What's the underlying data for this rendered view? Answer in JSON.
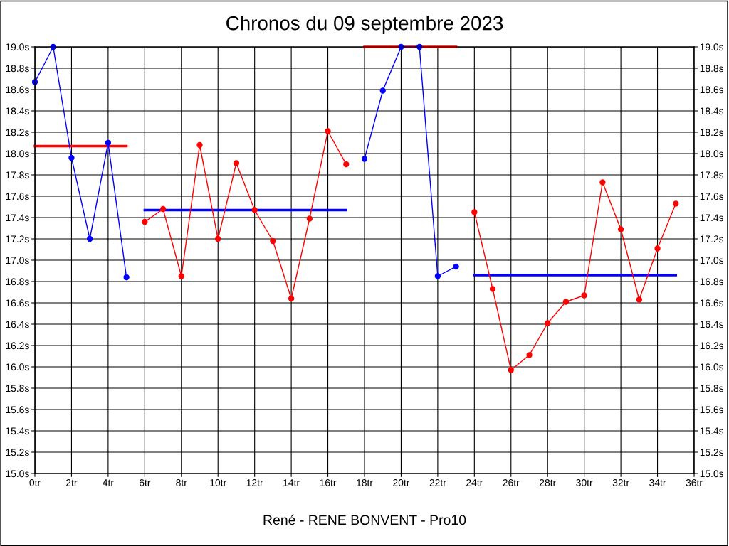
{
  "chart_data": {
    "type": "line",
    "title": "Chronos du 09 septembre 2023",
    "series": [
      {
        "color": "#0000ff",
        "marker": "circle",
        "x": [
          0,
          1,
          2,
          3,
          4,
          5
        ],
        "values": [
          18.67,
          19.0,
          17.96,
          17.2,
          18.1,
          16.84
        ]
      },
      {
        "color": "#ff0000",
        "marker": "none",
        "x": [
          0,
          5
        ],
        "values": [
          18.07,
          18.07
        ]
      },
      {
        "color": "#ff0000",
        "marker": "circle",
        "x": [
          6,
          7,
          8,
          9,
          10,
          11,
          12,
          13,
          14,
          15,
          16,
          17
        ],
        "values": [
          17.36,
          17.48,
          16.85,
          18.08,
          17.2,
          17.91,
          17.47,
          17.18,
          16.64,
          17.39,
          18.21,
          17.9
        ]
      },
      {
        "color": "#0000ff",
        "marker": "none",
        "x": [
          6,
          17
        ],
        "values": [
          17.47,
          17.47
        ]
      },
      {
        "color": "#0000ff",
        "marker": "circle",
        "x": [
          18,
          19,
          20,
          21,
          22,
          23
        ],
        "values": [
          17.95,
          18.59,
          19.0,
          19.0,
          16.85,
          16.94
        ]
      },
      {
        "color": "#ff0000",
        "marker": "none",
        "x": [
          18,
          23
        ],
        "values": [
          19.0,
          19.0
        ]
      },
      {
        "color": "#ff0000",
        "marker": "circle",
        "x": [
          24,
          25,
          26,
          27,
          28,
          29,
          30,
          31,
          32,
          33,
          34,
          35
        ],
        "values": [
          17.45,
          16.73,
          15.97,
          16.11,
          16.41,
          16.61,
          16.67,
          17.73,
          17.29,
          16.63,
          17.11,
          17.53
        ]
      },
      {
        "color": "#0000ff",
        "marker": "none",
        "x": [
          24,
          35
        ],
        "values": [
          16.86,
          16.86
        ]
      }
    ],
    "xlim": [
      0,
      36
    ],
    "xticks": [
      {
        "value": 0,
        "label": "0tr"
      },
      {
        "value": 2,
        "label": "2tr"
      },
      {
        "value": 4,
        "label": "4tr"
      },
      {
        "value": 6,
        "label": "6tr"
      },
      {
        "value": 8,
        "label": "8tr"
      },
      {
        "value": 10,
        "label": "10tr"
      },
      {
        "value": 12,
        "label": "12tr"
      },
      {
        "value": 14,
        "label": "14tr"
      },
      {
        "value": 16,
        "label": "16tr"
      },
      {
        "value": 18,
        "label": "18tr"
      },
      {
        "value": 20,
        "label": "20tr"
      },
      {
        "value": 22,
        "label": "22tr"
      },
      {
        "value": 24,
        "label": "24tr"
      },
      {
        "value": 26,
        "label": "26tr"
      },
      {
        "value": 28,
        "label": "28tr"
      },
      {
        "value": 30,
        "label": "30tr"
      },
      {
        "value": 32,
        "label": "32tr"
      },
      {
        "value": 34,
        "label": "34tr"
      },
      {
        "value": 36,
        "label": "36tr"
      }
    ],
    "ylim": [
      15.0,
      19.0
    ],
    "yticks": [
      {
        "value": 15.0,
        "label": "15.0s"
      },
      {
        "value": 15.2,
        "label": "15.2s"
      },
      {
        "value": 15.4,
        "label": "15.4s"
      },
      {
        "value": 15.6,
        "label": "15.6s"
      },
      {
        "value": 15.8,
        "label": "15.8s"
      },
      {
        "value": 16.0,
        "label": "16.0s"
      },
      {
        "value": 16.2,
        "label": "16.2s"
      },
      {
        "value": 16.4,
        "label": "16.4s"
      },
      {
        "value": 16.6,
        "label": "16.6s"
      },
      {
        "value": 16.8,
        "label": "16.8s"
      },
      {
        "value": 17.0,
        "label": "17.0s"
      },
      {
        "value": 17.2,
        "label": "17.2s"
      },
      {
        "value": 17.4,
        "label": "17.4s"
      },
      {
        "value": 17.6,
        "label": "17.6s"
      },
      {
        "value": 17.8,
        "label": "17.8s"
      },
      {
        "value": 18.0,
        "label": "18.0s"
      },
      {
        "value": 18.2,
        "label": "18.2s"
      },
      {
        "value": 18.4,
        "label": "18.4s"
      },
      {
        "value": 18.6,
        "label": "18.6s"
      },
      {
        "value": 18.8,
        "label": "18.8s"
      },
      {
        "value": 19.0,
        "label": "19.0s"
      }
    ],
    "y2lim": [
      15.0,
      19.0
    ],
    "y2ticks": [
      {
        "value": 15.0,
        "label": "15.0s"
      },
      {
        "value": 15.2,
        "label": "15.2s"
      },
      {
        "value": 15.4,
        "label": "15.4s"
      },
      {
        "value": 15.6,
        "label": "15.6s"
      },
      {
        "value": 15.8,
        "label": "15.8s"
      },
      {
        "value": 16.0,
        "label": "16.0s"
      },
      {
        "value": 16.2,
        "label": "16.2s"
      },
      {
        "value": 16.4,
        "label": "16.4s"
      },
      {
        "value": 16.6,
        "label": "16.6s"
      },
      {
        "value": 16.8,
        "label": "16.8s"
      },
      {
        "value": 17.0,
        "label": "17.0s"
      },
      {
        "value": 17.2,
        "label": "17.2s"
      },
      {
        "value": 17.4,
        "label": "17.4s"
      },
      {
        "value": 17.6,
        "label": "17.6s"
      },
      {
        "value": 17.8,
        "label": "17.8s"
      },
      {
        "value": 18.0,
        "label": "18.0s"
      },
      {
        "value": 18.2,
        "label": "18.2s"
      },
      {
        "value": 18.4,
        "label": "18.4s"
      },
      {
        "value": 18.6,
        "label": "18.6s"
      },
      {
        "value": 18.8,
        "label": "18.8s"
      },
      {
        "value": 19.0,
        "label": "19.0s"
      }
    ],
    "grid": true,
    "line_style": "solid",
    "annotations": [
      "René - RENE BONVENT - Pro10"
    ]
  }
}
